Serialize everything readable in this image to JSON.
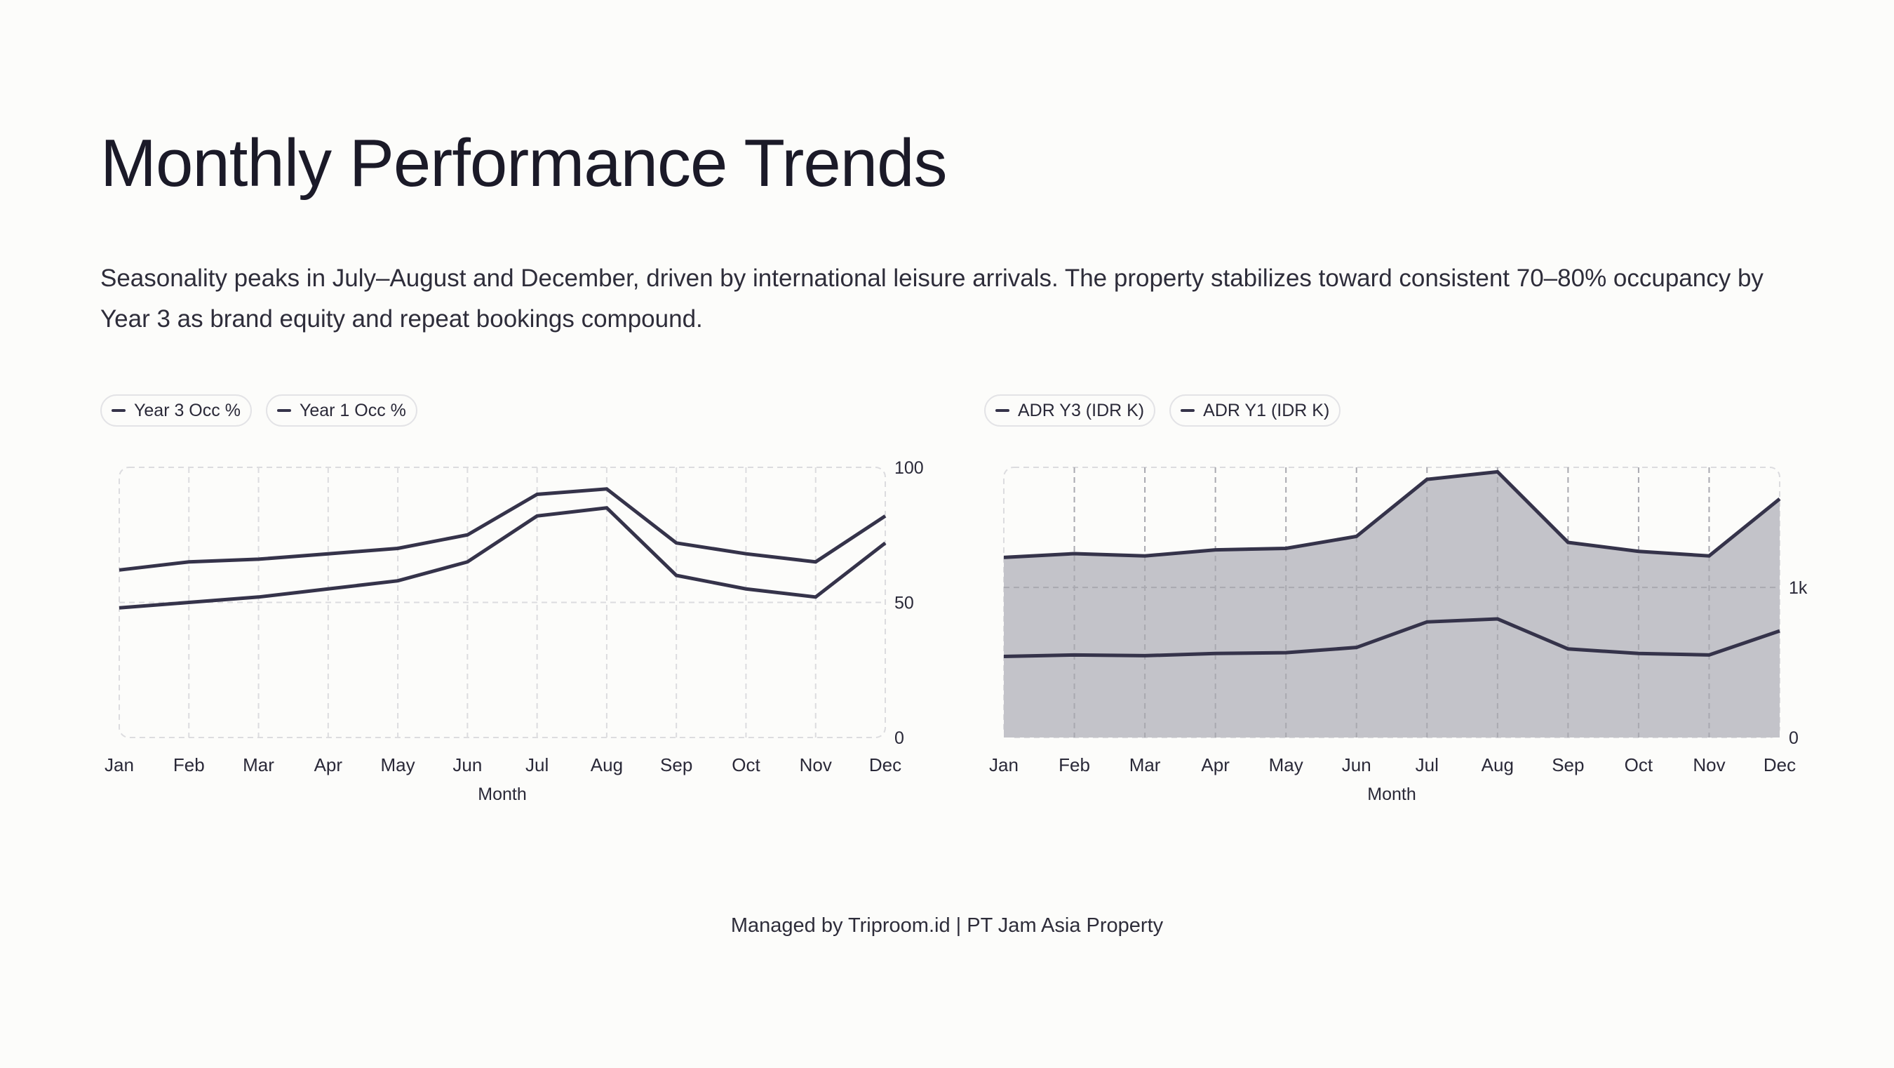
{
  "title": "Monthly Performance Trends",
  "subtitle": "Seasonality peaks in July–August and December, driven by international leisure arrivals. The property stabilizes toward consistent 70–80% occupancy by Year 3 as brand equity and repeat bookings compound.",
  "footer": "Managed by Triproom.id | PT Jam Asia Property",
  "colors": {
    "line": "#35334a",
    "area": "#c3c3c9",
    "grid": "#dcdcdf",
    "background": "#fcfcfa"
  },
  "chart_data": [
    {
      "type": "line",
      "title": "",
      "xlabel": "Month",
      "ylabel": "",
      "categories": [
        "Jan",
        "Feb",
        "Mar",
        "Apr",
        "May",
        "Jun",
        "Jul",
        "Aug",
        "Sep",
        "Oct",
        "Nov",
        "Dec"
      ],
      "ylim": [
        0,
        100
      ],
      "yticks": [
        "0",
        "50",
        "100"
      ],
      "y_axis_side": "right",
      "grid": true,
      "legend_position": "top-left",
      "series": [
        {
          "name": "Year 3 Occ %",
          "values": [
            62,
            65,
            66,
            68,
            70,
            75,
            90,
            92,
            72,
            68,
            65,
            82
          ]
        },
        {
          "name": "Year 1 Occ %",
          "values": [
            48,
            50,
            52,
            55,
            58,
            65,
            82,
            85,
            60,
            55,
            52,
            72
          ]
        }
      ]
    },
    {
      "type": "area",
      "title": "",
      "xlabel": "Month",
      "ylabel": "",
      "categories": [
        "Jan",
        "Feb",
        "Mar",
        "Apr",
        "May",
        "Jun",
        "Jul",
        "Aug",
        "Sep",
        "Oct",
        "Nov",
        "Dec"
      ],
      "ylim": [
        0,
        1800
      ],
      "yticks": [
        "0",
        "1k"
      ],
      "y_axis_side": "right",
      "grid": true,
      "legend_position": "top-left",
      "series": [
        {
          "name": "ADR Y3 (IDR K)",
          "values": [
            1200,
            1225,
            1210,
            1250,
            1260,
            1340,
            1720,
            1770,
            1300,
            1240,
            1210,
            1590
          ],
          "fill": true
        },
        {
          "name": "ADR Y1 (IDR K)",
          "values": [
            540,
            550,
            545,
            560,
            565,
            600,
            770,
            790,
            590,
            560,
            550,
            710
          ],
          "fill": false
        }
      ]
    }
  ]
}
